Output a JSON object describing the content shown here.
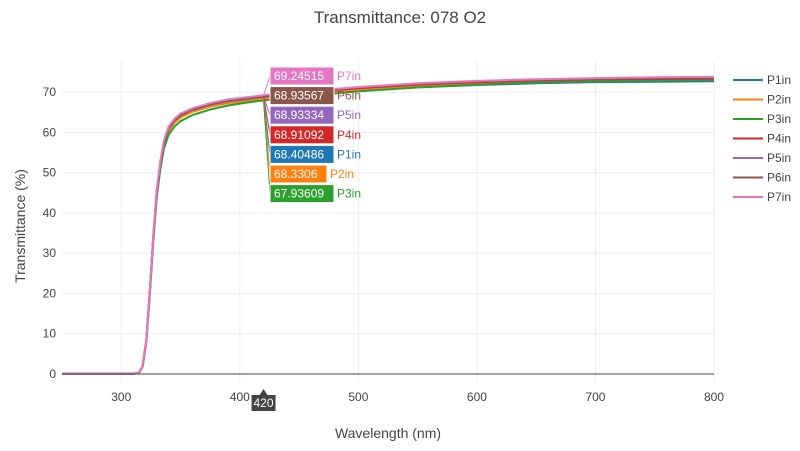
{
  "chart_data": {
    "type": "line",
    "title": "Transmittance: 078 O2",
    "xlabel": "Wavelength (nm)",
    "ylabel": "Transmittance (%)",
    "xlim": [
      250,
      800
    ],
    "ylim": [
      -2,
      78
    ],
    "x_ticks": [
      300,
      400,
      500,
      600,
      700,
      800
    ],
    "y_ticks": [
      0,
      10,
      20,
      30,
      40,
      50,
      60,
      70
    ],
    "grid": true,
    "legend_position": "right",
    "hover_x_label": "420",
    "series": [
      {
        "name": "P1in",
        "color": "#1f77b4",
        "x": [
          250,
          310,
          315,
          318,
          321,
          324,
          327,
          330,
          333,
          336,
          340,
          345,
          350,
          360,
          375,
          390,
          405,
          420,
          450,
          500,
          550,
          600,
          650,
          700,
          750,
          800
        ],
        "y": [
          0,
          0,
          0.3,
          2,
          8,
          20,
          34,
          45,
          52,
          57,
          60.5,
          62.5,
          63.8,
          65.2,
          66.5,
          67.4,
          67.9,
          68.40486,
          69.2,
          70.3,
          71.2,
          71.8,
          72.2,
          72.5,
          72.6,
          72.7
        ],
        "hover_value": "68.40486"
      },
      {
        "name": "P2in",
        "color": "#ff7f0e",
        "x": [
          250,
          310,
          315,
          318,
          321,
          324,
          327,
          330,
          333,
          336,
          340,
          345,
          350,
          360,
          375,
          390,
          405,
          420,
          450,
          500,
          550,
          600,
          650,
          700,
          750,
          800
        ],
        "y": [
          0,
          0,
          0.3,
          2,
          8,
          20,
          34,
          45,
          52,
          57,
          60.4,
          62.4,
          63.7,
          65.1,
          66.4,
          67.3,
          67.8,
          68.3306,
          69.3,
          70.5,
          71.5,
          72.2,
          72.7,
          73,
          73.1,
          73.2
        ],
        "hover_value": "68.3306"
      },
      {
        "name": "P3in",
        "color": "#2ca02c",
        "x": [
          250,
          310,
          315,
          318,
          321,
          324,
          327,
          330,
          333,
          336,
          340,
          345,
          350,
          360,
          375,
          390,
          405,
          420,
          450,
          500,
          550,
          600,
          650,
          700,
          750,
          800
        ],
        "y": [
          0,
          0,
          0.3,
          1.8,
          7.5,
          19,
          33,
          44,
          51,
          56,
          59.5,
          61.5,
          62.8,
          64.3,
          65.7,
          66.7,
          67.4,
          67.93609,
          68.9,
          70.2,
          71.2,
          71.9,
          72.4,
          72.7,
          72.9,
          73
        ],
        "hover_value": "67.93609"
      },
      {
        "name": "P4in",
        "color": "#d62728",
        "x": [
          250,
          310,
          315,
          318,
          321,
          324,
          327,
          330,
          333,
          336,
          340,
          345,
          350,
          360,
          375,
          390,
          405,
          420,
          450,
          500,
          550,
          600,
          650,
          700,
          750,
          800
        ],
        "y": [
          0,
          0,
          0.3,
          2,
          8,
          20,
          34,
          45.5,
          52.5,
          57.5,
          61,
          63,
          64.3,
          65.7,
          67,
          67.9,
          68.4,
          68.91092,
          69.8,
          71,
          71.9,
          72.5,
          72.9,
          73.2,
          73.3,
          73.4
        ],
        "hover_value": "68.91092"
      },
      {
        "name": "P5in",
        "color": "#9467bd",
        "x": [
          250,
          310,
          315,
          318,
          321,
          324,
          327,
          330,
          333,
          336,
          340,
          345,
          350,
          360,
          375,
          390,
          405,
          420,
          450,
          500,
          550,
          600,
          650,
          700,
          750,
          800
        ],
        "y": [
          0,
          0,
          0.3,
          2,
          8,
          20,
          34,
          45.5,
          52.5,
          57.5,
          61,
          63,
          64.3,
          65.7,
          67,
          67.9,
          68.4,
          68.93334,
          69.9,
          71.2,
          72.1,
          72.7,
          73.1,
          73.4,
          73.6,
          73.7
        ],
        "hover_value": "68.93334"
      },
      {
        "name": "P6in",
        "color": "#8c564b",
        "x": [
          250,
          310,
          315,
          318,
          321,
          324,
          327,
          330,
          333,
          336,
          340,
          345,
          350,
          360,
          375,
          390,
          405,
          420,
          450,
          500,
          550,
          600,
          650,
          700,
          750,
          800
        ],
        "y": [
          0,
          0,
          0.3,
          2,
          8,
          20,
          34,
          45.5,
          52.5,
          57.5,
          61,
          63,
          64.3,
          65.7,
          67,
          67.9,
          68.4,
          68.93567,
          69.9,
          71.2,
          72.1,
          72.7,
          73.1,
          73.4,
          73.6,
          73.7
        ],
        "hover_value": "68.93567"
      },
      {
        "name": "P7in",
        "color": "#e377c2",
        "x": [
          250,
          310,
          315,
          318,
          321,
          324,
          327,
          330,
          333,
          336,
          340,
          345,
          350,
          360,
          375,
          390,
          405,
          420,
          450,
          500,
          550,
          600,
          650,
          700,
          750,
          800
        ],
        "y": [
          0,
          0,
          0.3,
          2,
          8,
          20,
          34.5,
          46,
          53,
          58,
          61.5,
          63.4,
          64.7,
          66,
          67.3,
          68.2,
          68.7,
          69.24515,
          70.1,
          71.3,
          72.2,
          72.8,
          73.2,
          73.5,
          73.7,
          73.8
        ],
        "hover_value": "69.24515"
      }
    ],
    "hover_order": [
      "P7in",
      "P6in",
      "P5in",
      "P4in",
      "P1in",
      "P2in",
      "P3in"
    ]
  }
}
